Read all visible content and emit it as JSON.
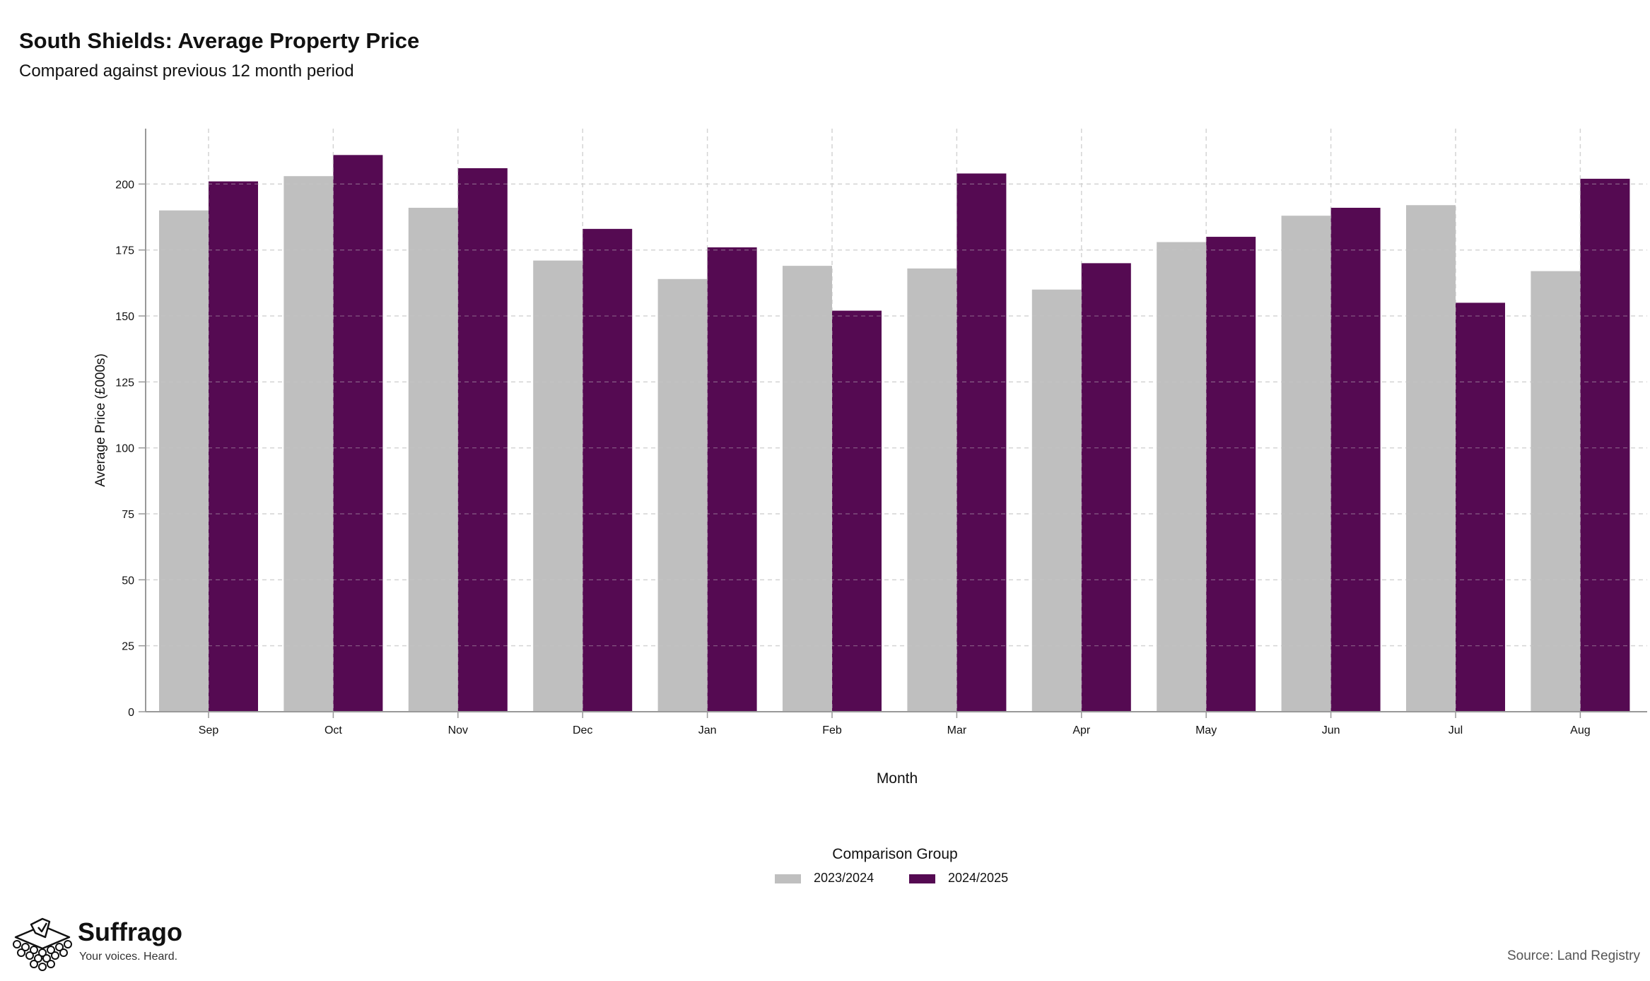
{
  "header": {
    "title": "South Shields: Average Property Price",
    "subtitle": "Compared against previous 12 month period"
  },
  "chart_data": {
    "type": "bar",
    "title": "South Shields: Average Property Price",
    "subtitle": "Compared against previous 12 month period",
    "xlabel": "Month",
    "ylabel": "Average Price (£000s)",
    "categories": [
      "Sep",
      "Oct",
      "Nov",
      "Dec",
      "Jan",
      "Feb",
      "Mar",
      "Apr",
      "May",
      "Jun",
      "Jul",
      "Aug"
    ],
    "series": [
      {
        "name": "2023/2024",
        "color": "#bfbfbf",
        "values": [
          190,
          203,
          191,
          171,
          164,
          169,
          168,
          160,
          178,
          188,
          192,
          167
        ]
      },
      {
        "name": "2024/2025",
        "color": "#550a52",
        "values": [
          201,
          211,
          206,
          183,
          176,
          152,
          204,
          170,
          180,
          191,
          155,
          202
        ]
      }
    ],
    "ylim": [
      0,
      221
    ],
    "yticks": [
      0,
      25,
      50,
      75,
      100,
      125,
      150,
      175,
      200
    ],
    "grid": true,
    "legend": {
      "title": "Comparison Group",
      "position": "bottom-center"
    }
  },
  "footer": {
    "brand": "Suffrago",
    "tagline": "Your voices. Heard.",
    "source": "Source: Land Registry",
    "logo_icon": "ballot-box-icon"
  }
}
